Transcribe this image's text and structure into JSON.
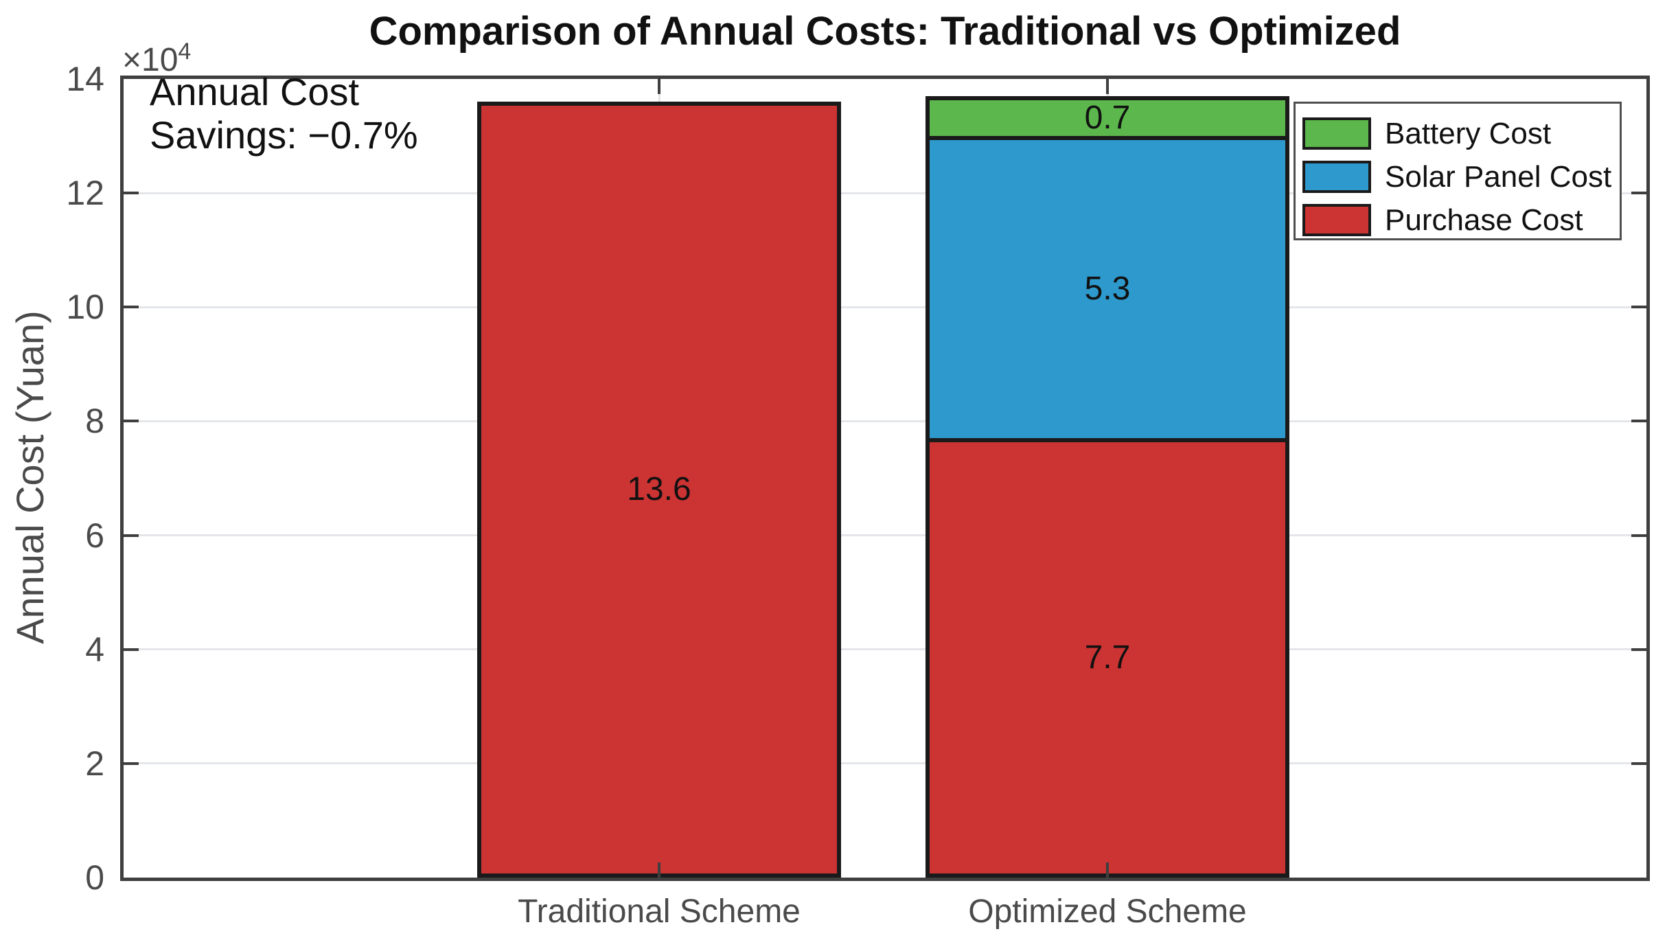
{
  "title": "Comparison of Annual Costs: Traditional vs Optimized",
  "annotation": {
    "line1": "Annual Cost",
    "line2": "Savings: −0.7%"
  },
  "yaxis": {
    "label": "Annual Cost (Yuan)",
    "exponent_text": "×10",
    "exponent_power": "4",
    "ticks": [
      0,
      2,
      4,
      6,
      8,
      10,
      12,
      14
    ]
  },
  "legend": [
    {
      "label": "Battery Cost",
      "color": "#5CB84C"
    },
    {
      "label": "Solar Panel Cost",
      "color": "#2E99CC"
    },
    {
      "label": "Purchase Cost",
      "color": "#CC3333"
    }
  ],
  "chart_data": {
    "type": "bar",
    "stacked": true,
    "title": "Comparison of Annual Costs: Traditional vs Optimized",
    "ylabel": "Annual Cost (Yuan)",
    "unit_multiplier": "×10^4",
    "ylim": [
      0,
      14
    ],
    "grid": true,
    "legend_position": "upper right",
    "categories": [
      "Traditional Scheme",
      "Optimized Scheme"
    ],
    "series": [
      {
        "name": "Purchase Cost",
        "color": "#CC3333",
        "values": [
          13.6,
          7.7
        ]
      },
      {
        "name": "Solar Panel Cost",
        "color": "#2E99CC",
        "values": [
          0,
          5.3
        ]
      },
      {
        "name": "Battery Cost",
        "color": "#5CB84C",
        "values": [
          0,
          0.7
        ]
      }
    ],
    "totals": [
      13.6,
      13.7
    ],
    "annotation": "Annual Cost Savings: −0.7%"
  }
}
